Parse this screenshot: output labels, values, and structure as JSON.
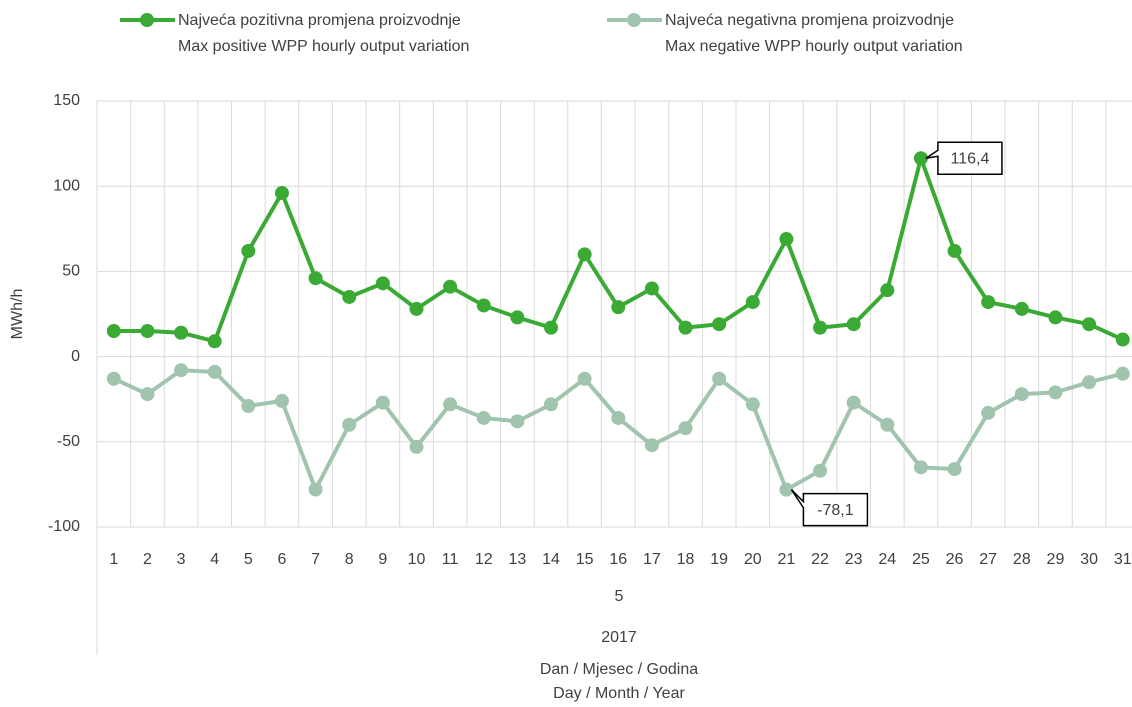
{
  "chart_data": {
    "type": "line",
    "categories": [
      "1",
      "2",
      "3",
      "4",
      "5",
      "6",
      "7",
      "8",
      "9",
      "10",
      "11",
      "12",
      "13",
      "14",
      "15",
      "16",
      "17",
      "18",
      "19",
      "20",
      "21",
      "22",
      "23",
      "24",
      "25",
      "26",
      "27",
      "28",
      "29",
      "30",
      "31"
    ],
    "month": "5",
    "year": "2017",
    "xlabel": [
      "Dan / Mjesec / Godina",
      "Day / Month / Year"
    ],
    "ylabel": "MWh/h",
    "ylim": [
      -100,
      150
    ],
    "yticks": [
      -100,
      -50,
      0,
      50,
      100,
      150
    ],
    "grid": true,
    "series": [
      {
        "name": "Najveća pozitivna promjena proizvodnje",
        "subname": "Max positive WPP hourly output variation",
        "color": "#3aaa35",
        "values": [
          15,
          15,
          14,
          9,
          62,
          96,
          46,
          35,
          43,
          28,
          41,
          30,
          23,
          17,
          60,
          29,
          40,
          17,
          19,
          32,
          69,
          17,
          19,
          39,
          116.4,
          62,
          32,
          28,
          23,
          19,
          10
        ],
        "value_labels": [
          null,
          null,
          null,
          null,
          null,
          null,
          null,
          null,
          null,
          null,
          null,
          null,
          null,
          null,
          null,
          null,
          null,
          null,
          null,
          null,
          null,
          null,
          null,
          null,
          "116,4",
          null,
          null,
          null,
          null,
          null,
          null
        ]
      },
      {
        "name": "Najveća negativna promjena proizvodnje",
        "subname": "Max negative WPP hourly output variation",
        "color": "#a0c4ad",
        "values": [
          -13,
          -22,
          -8,
          -9,
          -29,
          -26,
          -78,
          -40,
          -27,
          -53,
          -28,
          -36,
          -38,
          -28,
          -13,
          -36,
          -52,
          -42,
          -13,
          -28,
          -78.1,
          -67,
          -27,
          -40,
          -65,
          -66,
          -33,
          -22,
          -21,
          -15,
          -10
        ],
        "value_labels": [
          null,
          null,
          null,
          null,
          null,
          null,
          null,
          null,
          null,
          null,
          null,
          null,
          null,
          null,
          null,
          null,
          null,
          null,
          null,
          null,
          "-78,1",
          null,
          null,
          null,
          null,
          null,
          null,
          null,
          null,
          null,
          null
        ]
      }
    ]
  }
}
